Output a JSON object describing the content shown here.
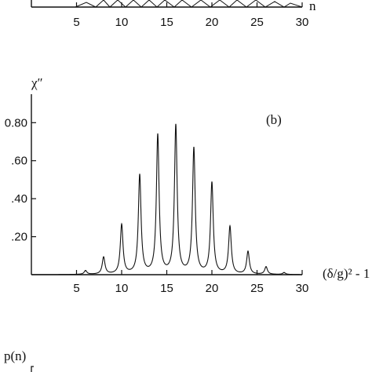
{
  "chart_data": [
    {
      "type": "line",
      "panel": "a (cropped)",
      "xlabel": "n",
      "xlim": [
        0,
        30
      ],
      "x_ticks": [
        5,
        10,
        15,
        20,
        25,
        30
      ]
    },
    {
      "type": "line",
      "panel_label": "(b)",
      "ylabel": "χ″",
      "xlabel": "(δ/g)² - 1",
      "xlim": [
        0,
        30
      ],
      "ylim": [
        0,
        0.95
      ],
      "x_ticks": [
        5,
        10,
        15,
        20,
        25,
        30
      ],
      "y_ticks": [
        {
          "value": 0.2,
          "label": ".20"
        },
        {
          "value": 0.4,
          "label": ".40"
        },
        {
          "value": 0.6,
          "label": ".60"
        },
        {
          "value": 0.8,
          "label": "0.80"
        }
      ],
      "peaks": {
        "x": [
          6,
          8,
          10,
          12,
          14,
          16,
          18,
          20,
          22,
          24,
          26,
          28
        ],
        "y": [
          0.02,
          0.09,
          0.26,
          0.52,
          0.73,
          0.78,
          0.66,
          0.48,
          0.25,
          0.12,
          0.04,
          0.01
        ]
      }
    },
    {
      "type": "line",
      "panel": "c (cropped)",
      "ylabel": "p(n)"
    }
  ]
}
